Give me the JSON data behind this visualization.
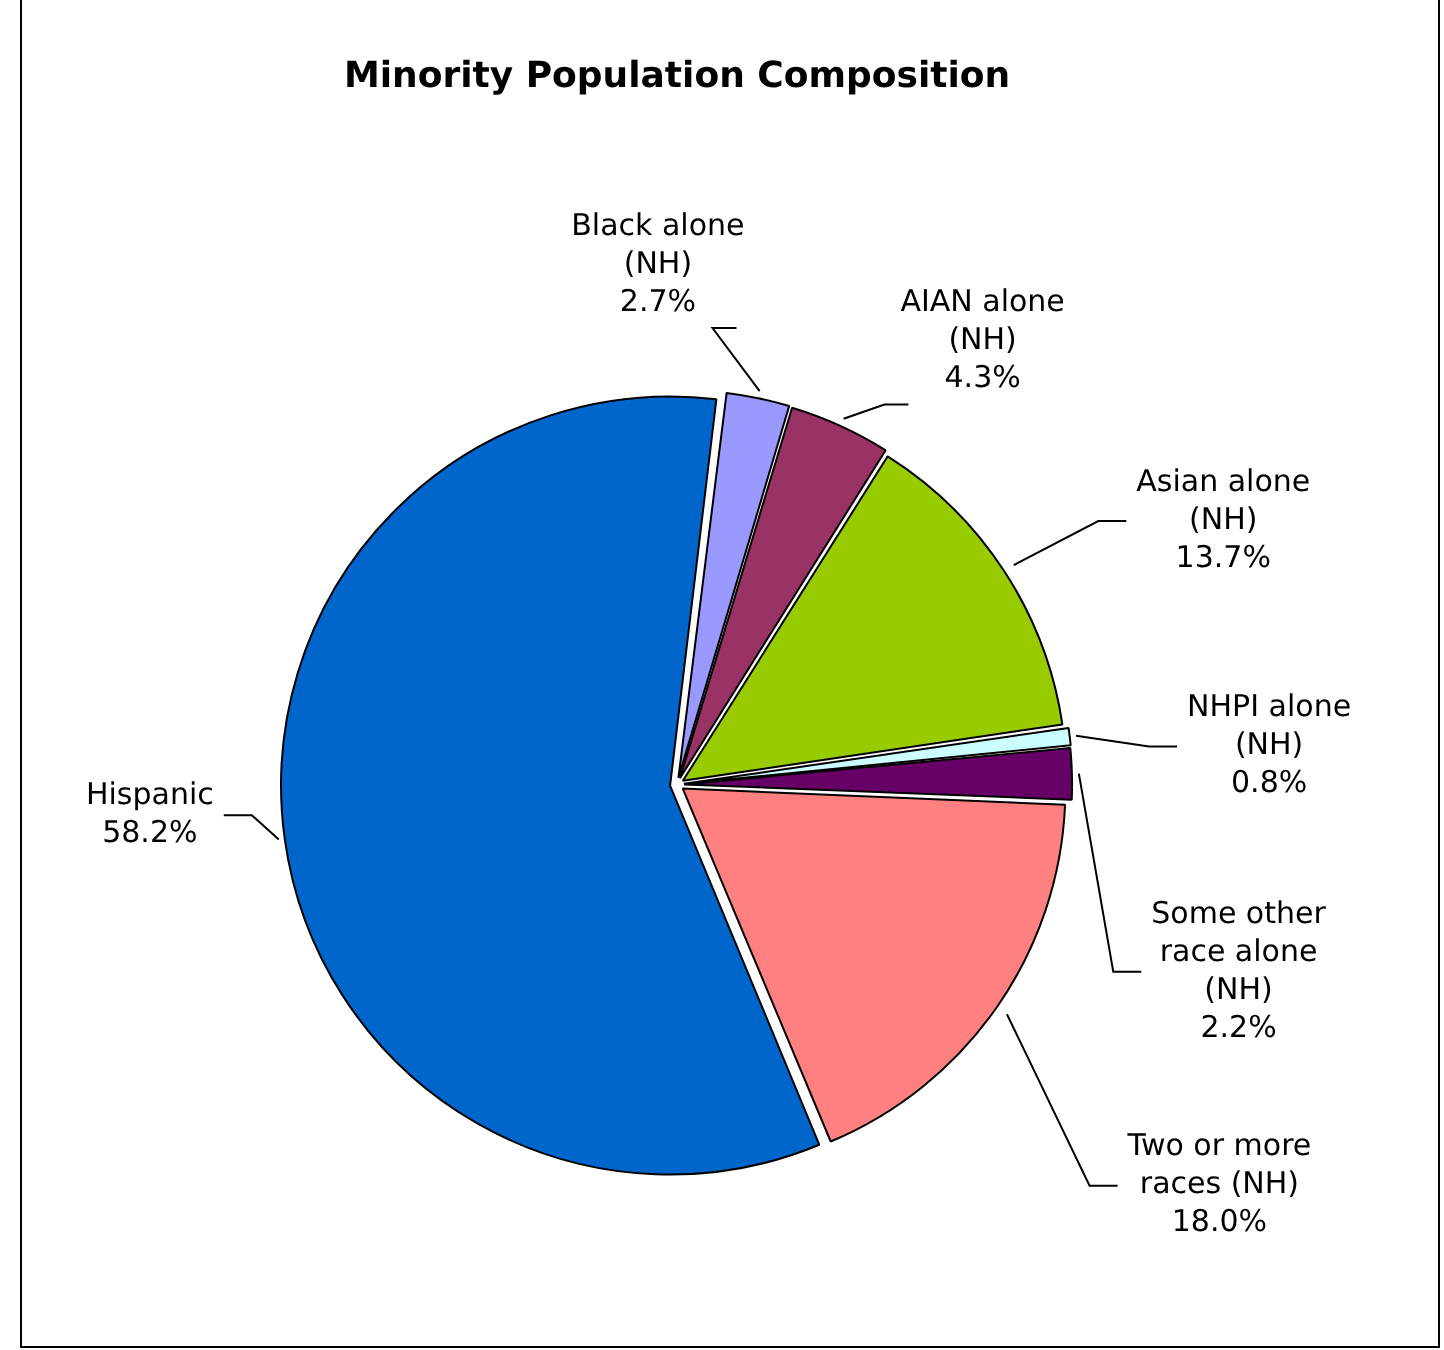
{
  "chart_data": {
    "type": "pie",
    "title": "Minority Population Composition",
    "categories": [
      "Black alone (NH)",
      "AIAN alone (NH)",
      "Asian alone (NH)",
      "NHPI alone (NH)",
      "Some other race alone (NH)",
      "Two or more races (NH)",
      "Hispanic"
    ],
    "values": [
      2.7,
      4.3,
      13.7,
      0.8,
      2.2,
      18.0,
      58.2
    ],
    "value_labels": [
      "2.7%",
      "4.3%",
      "13.7%",
      "0.8%",
      "2.2%",
      "18.0%",
      "58.2%"
    ],
    "colors": [
      "#9999ff",
      "#993366",
      "#99cc00",
      "#ccffff",
      "#660066",
      "#ff8080",
      "#0066cc"
    ],
    "legend": false
  }
}
